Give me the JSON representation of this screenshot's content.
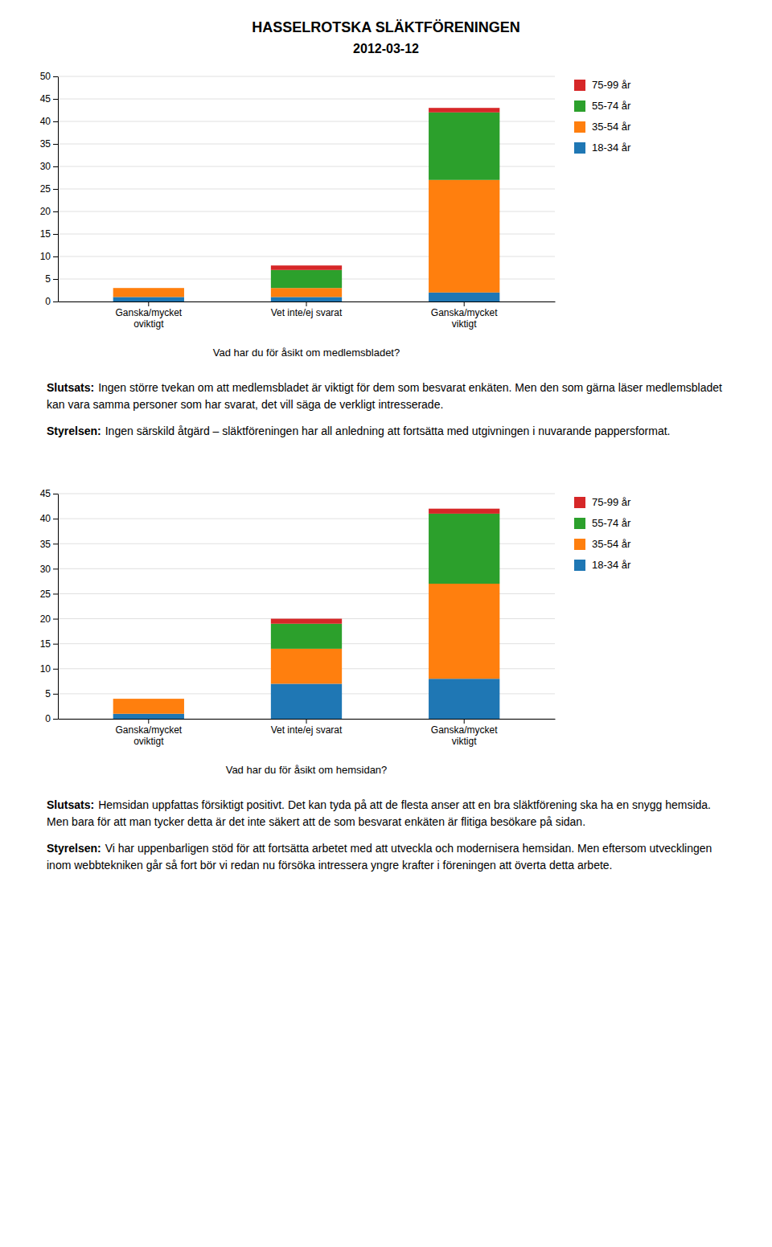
{
  "title": "HASSELROTSKA SLÄKTFÖRENINGEN",
  "subtitle": "2012-03-12",
  "chart_data": [
    {
      "type": "bar",
      "xlabel": "Vad har du för åsikt om medlemsbladet?",
      "categories": [
        "Ganska/mycket\noviktigt",
        "Vet inte/ej svarat",
        "Ganska/mycket\nviktigt"
      ],
      "series": [
        {
          "name": "18-34 år",
          "values": [
            1,
            1,
            2
          ]
        },
        {
          "name": "35-54 år",
          "values": [
            2,
            2,
            25
          ]
        },
        {
          "name": "55-74 år",
          "values": [
            0,
            4,
            15
          ]
        },
        {
          "name": "75-99 år",
          "values": [
            0,
            1,
            1
          ]
        }
      ],
      "ylim": [
        0,
        50
      ],
      "yticks": [
        0,
        5,
        10,
        15,
        20,
        25,
        30,
        35,
        40,
        45,
        50
      ],
      "stacked": true,
      "grid": true,
      "legend": "right",
      "annotations": [
        {
          "label": "Slutsats:",
          "text": "Ingen större tvekan om att medlemsbladet är viktigt för dem som besvarat enkäten. Men den som gärna läser medlemsbladet kan vara samma personer som har svarat, det vill säga de verkligt intresserade."
        },
        {
          "label": "Styrelsen:",
          "text": "Ingen särskild åtgärd – släktföreningen har all anledning att fortsätta med utgivningen i nuvarande pappersformat."
        }
      ]
    },
    {
      "type": "bar",
      "xlabel": "Vad har du för åsikt om hemsidan?",
      "categories": [
        "Ganska/mycket\noviktigt",
        "Vet inte/ej svarat",
        "Ganska/mycket\nviktigt"
      ],
      "series": [
        {
          "name": "18-34 år",
          "values": [
            1,
            7,
            8
          ]
        },
        {
          "name": "35-54 år",
          "values": [
            3,
            7,
            19
          ]
        },
        {
          "name": "55-74 år",
          "values": [
            0,
            5,
            14
          ]
        },
        {
          "name": "75-99 år",
          "values": [
            0,
            1,
            1
          ]
        }
      ],
      "ylim": [
        0,
        45
      ],
      "yticks": [
        0,
        5,
        10,
        15,
        20,
        25,
        30,
        35,
        40,
        45
      ],
      "stacked": true,
      "grid": true,
      "legend": "right",
      "annotations": [
        {
          "label": "Slutsats:",
          "text": "Hemsidan uppfattas försiktigt positivt. Det kan tyda på att de flesta anser att en bra släktförening ska ha en snygg hemsida. Men bara för att man tycker detta är det inte säkert att de som besvarat enkäten är flitiga besökare på sidan."
        },
        {
          "label": "Styrelsen:",
          "text": "Vi har uppenbarligen stöd för att fortsätta arbetet med att utveckla och modernisera hemsidan. Men eftersom utvecklingen inom webbtekniken går så fort bör vi redan nu försöka intressera yngre krafter i föreningen att överta detta arbete."
        }
      ]
    }
  ]
}
